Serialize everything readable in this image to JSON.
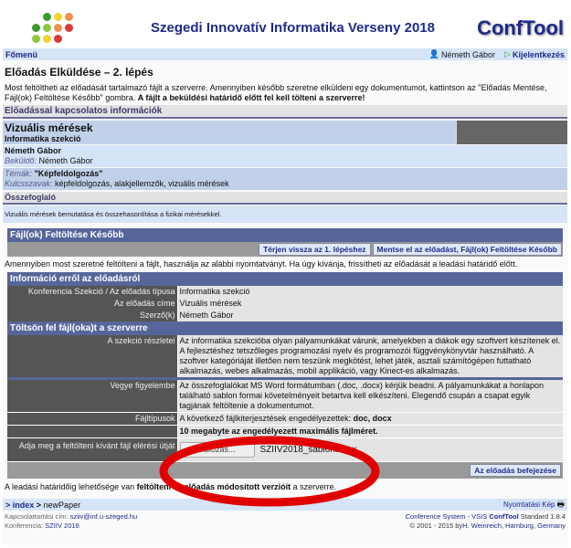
{
  "header": {
    "title": "Szegedi Innovatív Informatika Verseny 2018",
    "brand": "ConfTool"
  },
  "nav": {
    "main_menu": "Főmenü",
    "user": "Németh Gábor",
    "logout": "Kijelentkezés"
  },
  "page": {
    "title": "Előadás Elküldése – 2. lépés",
    "intro": "Most feltöltheti az előadását tartalmazó fájlt a szerverre. Amennyiben később szeretne elküldeni egy dokumentumot, kattintson az \"Előadás Mentése, Fájl(ok) Feltöltése Később\" gombra. ",
    "intro_bold": "A fájlt a beküldési határidő előtt fel kell tölteni a szerverre!"
  },
  "info": {
    "section": "Előadással kapcsolatos információk",
    "paper_title": "Vizuális mérések",
    "session": "Informatika szekció",
    "author": "Németh Gábor",
    "submitter_label": "Beküldő:",
    "submitter": "Németh Gábor",
    "topics_label": "Témák:",
    "topics": "\"Képfeldolgozás\"",
    "keywords_label": "Kulcsszavak:",
    "keywords": "képfeldolgozás, alakjellemzők, vizuális mérések",
    "abstract_label": "Összefoglaló",
    "abstract": "Vizuális mérések bemutatása és összehasonlítása a fizikai mérésekkel."
  },
  "later": {
    "title": "Fájl(ok) Feltöltése Később",
    "back_button": "Térjen vissza az 1. lépéshez",
    "save_later_button": "Mentse el az előadást, Fájl(ok) Feltöltése Később"
  },
  "upload_note": "Amennyiben most szeretné feltölteni a fájlt, használja az alábbi nyomtatványt. Ha úgy kívánja, frissítheti az előadását a leadási határidő előtt.",
  "about": {
    "title": "Információ erről az előadásról",
    "rows": [
      {
        "k": "Konferencia Szekció / Az előadás típusa",
        "v": "Informatika szekció"
      },
      {
        "k": "Az előadás címe",
        "v": "Vizuális mérések"
      },
      {
        "k": "Szerző(k)",
        "v": "Németh Gábor"
      }
    ]
  },
  "upload": {
    "title": "Töltsön fel fájl(oka)t a szerverre",
    "details_k": "A szekció részletei",
    "details_v": "Az informatika szekcióba olyan pályamunkákat várunk, amelyekben a diákok egy szoftvert készítenek el. A fejlesztéshez tetszőleges programozási nyelv és programozói függvénykönyvtár használható. A szoftver kategóriáját illetően nem teszünk megkötést, lehet játék, asztali számítógépen futtatható alkalmazás, webes alkalmazás, mobil applikáció, vagy Kinect-es alkalmazás.",
    "note_k": "Vegye figyelembe",
    "note_v": "Az összefoglalókat MS Word formátumban (.doc, .docx) kérjük beadni. A pályamunkákat a honlapon található sablon formai követelményeit betartva kell elkészíteni. Elegendő csupán a csapat egyik tagjának feltöltenie a dokumentumot.",
    "types_k": "Fájltípusok",
    "types_v": "A következő fájlkiterjesztések engedélyezettek: ",
    "types_b": "doc, docx",
    "size_v": "10 megabyte az engedélyezett maximális fájlméret.",
    "file_k": "Adja meg a feltölteni kívánt fájl elérési útját",
    "browse": "Tallózás...",
    "file_name": "SZIIV2018_sablon.docx",
    "finish_button": "Az előadás befejezése"
  },
  "deadline": {
    "pre": "A leadási határidőig lehetősége van ",
    "bold": "feltölteni az előadás módosított verzióit",
    "post": " a szerverre."
  },
  "footer": {
    "crumb1": "index",
    "crumb2": "newPaper",
    "print": "Nyomtatási Kép",
    "contact_label": "Kapcsolattartási cím:",
    "contact": "sziiv@inf.u-szeged.hu",
    "conf_label": "Konferencia:",
    "conf": "SZIIV 2018",
    "system": "Conference System - VSIS ",
    "system_b": "ConfTool",
    "edition": " Standard 1.8.4",
    "copy": "© 2001 - 2015 by",
    "copy_link": "H. Weinreich, Hamburg, Germany"
  },
  "colors": {
    "accent": "#1f2a8a",
    "section_bar": "#56669a",
    "highlight_ellipse": "#e00000"
  }
}
